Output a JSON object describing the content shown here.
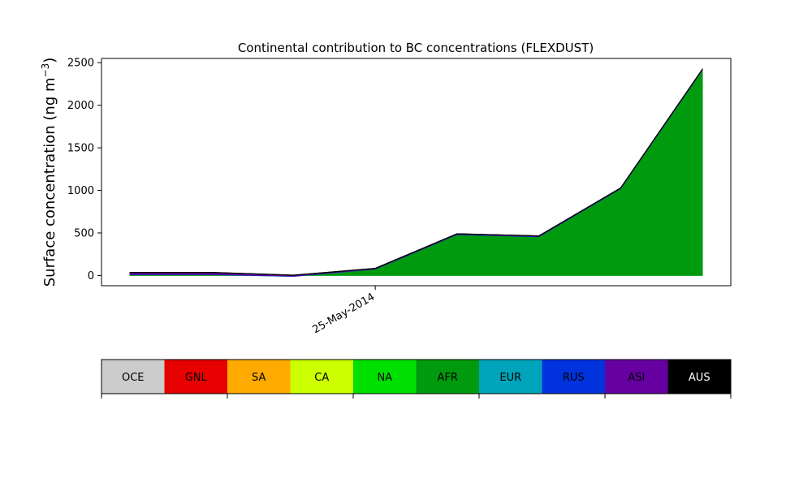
{
  "chart_data": {
    "type": "area",
    "title": "Continental contribution to BC concentrations (FLEXDUST)",
    "ylabel_main": "Surface concentration (ng m",
    "ylabel_sup": "−3",
    "ylabel_close": ")",
    "xlabel": "",
    "xtick_labels": [
      {
        "label": "25-May-2014",
        "at_index": 3
      }
    ],
    "ylim": [
      -120,
      2550
    ],
    "yticks": [
      0,
      500,
      1000,
      1500,
      2000,
      2500
    ],
    "x": [
      0,
      1,
      2,
      3,
      4,
      5,
      6,
      7
    ],
    "stacked": true,
    "series": [
      {
        "name": "AFR",
        "color": "#009a0e",
        "values": [
          10,
          10,
          -10,
          75,
          480,
          455,
          1020,
          2415
        ]
      },
      {
        "name": "RUS",
        "color": "#0033dd",
        "values": [
          5,
          5,
          3,
          3,
          4,
          4,
          3,
          3
        ]
      },
      {
        "name": "ASI",
        "color": "#6600a0",
        "values": [
          20,
          20,
          10,
          5,
          5,
          5,
          4,
          4
        ]
      },
      {
        "name": "AUS",
        "color": "#000000",
        "values": [
          1,
          1,
          1,
          1,
          1,
          1,
          1,
          1
        ]
      }
    ],
    "grid": false
  },
  "legend": {
    "items": [
      {
        "label": "OCE",
        "color": "#cccccc",
        "text_color": "#000000"
      },
      {
        "label": "GNL",
        "color": "#e60000",
        "text_color": "#000000"
      },
      {
        "label": "SA",
        "color": "#ffaa00",
        "text_color": "#000000"
      },
      {
        "label": "CA",
        "color": "#ccff00",
        "text_color": "#000000"
      },
      {
        "label": "NA",
        "color": "#00e000",
        "text_color": "#000000"
      },
      {
        "label": "AFR",
        "color": "#009a0e",
        "text_color": "#000000"
      },
      {
        "label": "EUR",
        "color": "#00a5bb",
        "text_color": "#000000"
      },
      {
        "label": "RUS",
        "color": "#0033dd",
        "text_color": "#000000"
      },
      {
        "label": "ASI",
        "color": "#6600a0",
        "text_color": "#000000"
      },
      {
        "label": "AUS",
        "color": "#000000",
        "text_color": "#ffffff"
      }
    ]
  }
}
